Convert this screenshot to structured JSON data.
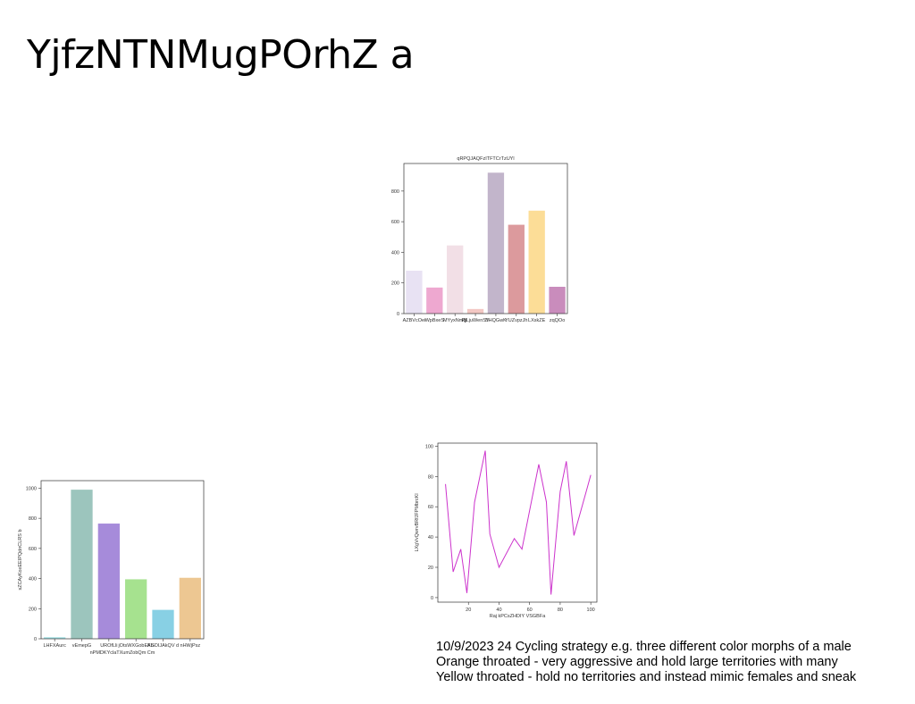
{
  "slide": {
    "title": "YjfzNTNMugPOrhZ a",
    "notes": [
      "10/9/2023 24 Cycling strategy e.g. three different color morphs of a male",
      "Orange throated - very aggressive and hold large territories with many",
      "Yellow throated - hold no territories and instead mimic females and sneak"
    ]
  },
  "chart_data": [
    {
      "id": "chart1",
      "type": "bar",
      "title": "qRPQJAQFzITFTCrTzUYl",
      "xlabel": "",
      "ylabel": "",
      "categories": [
        "AZBVcOei",
        "WpBxeS",
        "MYyxNmfjl",
        "RjLjuWenSY",
        "SHQGwK",
        "YUZvpzJh",
        "LXskZE",
        "zqQOo"
      ],
      "values": [
        280,
        170,
        445,
        30,
        920,
        580,
        672,
        175
      ],
      "colors": [
        "#e8e2f3",
        "#eea8d0",
        "#f2dfe6",
        "#f3c8c4",
        "#c2b5cb",
        "#dc9a9d",
        "#fcdd97",
        "#c98cbc"
      ],
      "ylim": [
        0,
        980
      ],
      "yticks": [
        0,
        200,
        400,
        600,
        800
      ],
      "grid": false
    },
    {
      "id": "chart2",
      "type": "bar",
      "title": "",
      "xlabel": "nPMDKYclaTXumZobQm Cm",
      "ylabel": "sZCAyKoxEEIPQdnCLRS b",
      "categories": [
        "LHFXAurc",
        "vEmepG",
        "UROfLli",
        "jOtsWXGobEKb",
        "AGDIJAkQV d",
        "nHWjPsz"
      ],
      "values": [
        10,
        990,
        765,
        395,
        192,
        405
      ],
      "colors": [
        "#9fe0e4",
        "#9cc5bd",
        "#a68bda",
        "#a6e28f",
        "#88d0e4",
        "#edc792"
      ],
      "ylim": [
        0,
        1050
      ],
      "yticks": [
        0,
        200,
        400,
        600,
        800,
        1000
      ],
      "grid": false
    },
    {
      "id": "chart3",
      "type": "line",
      "title": "",
      "xlabel": "Raj kPCsZHDIY VSGBFa",
      "ylabel": "LXgVvQwrvBRfJFPMbrcKl",
      "x": [
        5,
        10,
        15,
        19,
        24,
        31,
        34,
        40,
        50,
        55,
        66,
        71,
        74,
        80,
        84,
        89,
        97,
        100
      ],
      "y": [
        75,
        17,
        32,
        3,
        63,
        97,
        42,
        20,
        39,
        32,
        88,
        63,
        2,
        70,
        90,
        41,
        70,
        81
      ],
      "color": "#cc33cc",
      "xlim": [
        0,
        104
      ],
      "ylim": [
        -3,
        102
      ],
      "xticks": [
        20,
        40,
        60,
        80,
        100
      ],
      "yticks": [
        0,
        20,
        40,
        60,
        80,
        100
      ],
      "grid": false
    }
  ]
}
